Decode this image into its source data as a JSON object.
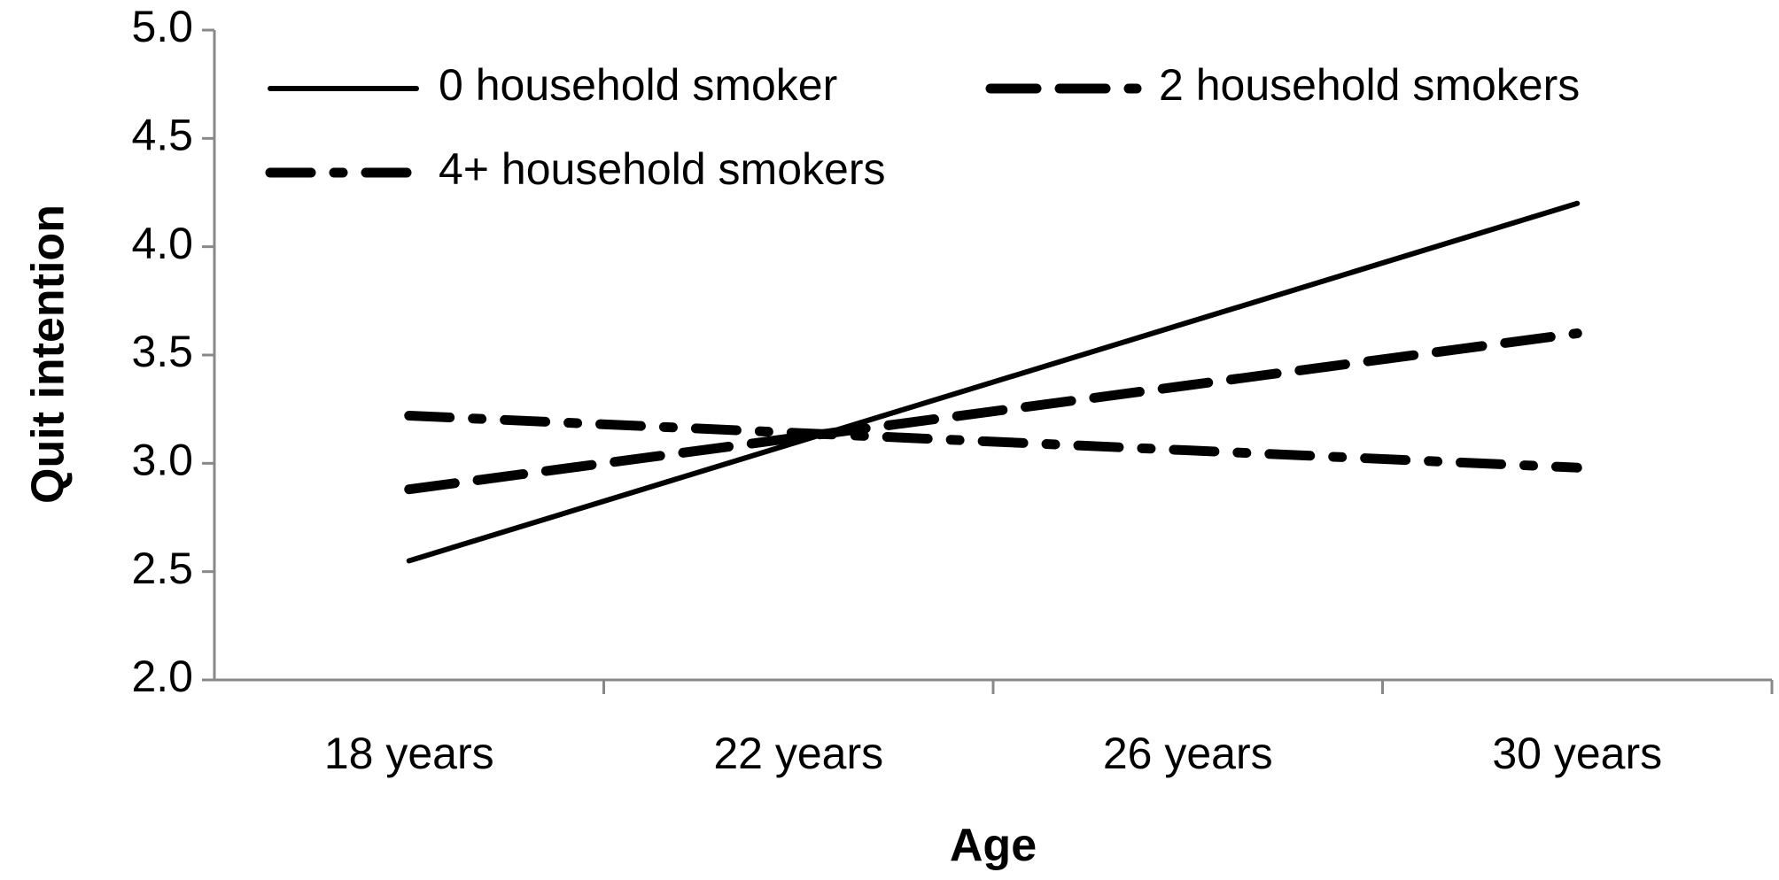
{
  "chart_data": {
    "type": "line",
    "xlabel": "Age",
    "ylabel": "Quit intention",
    "categories": [
      "18 years",
      "22 years",
      "26 years",
      "30 years"
    ],
    "ylim": [
      2.0,
      5.0
    ],
    "yticks": [
      "2.0",
      "2.5",
      "3.0",
      "3.5",
      "4.0",
      "4.5",
      "5.0"
    ],
    "grid": false,
    "legend_position": "top-left",
    "series": [
      {
        "name": "0 household smoker",
        "style": "solid",
        "values": [
          2.55,
          3.1,
          3.65,
          4.2
        ]
      },
      {
        "name": "2 household smokers",
        "style": "dashed",
        "values": [
          2.88,
          3.12,
          3.36,
          3.6
        ]
      },
      {
        "name": "4+ household smokers",
        "style": "dash-dot",
        "values": [
          3.22,
          3.14,
          3.06,
          2.98
        ]
      }
    ],
    "colors": {
      "line": "#000000",
      "axis": "#888888"
    }
  }
}
